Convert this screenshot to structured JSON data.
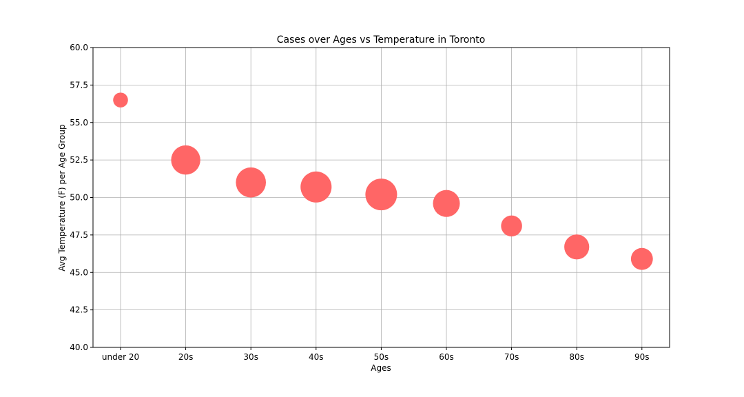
{
  "chart_data": {
    "type": "scatter",
    "title": "Cases over Ages vs Temperature in Toronto",
    "xlabel": "Ages",
    "ylabel": "Avg Temperature (F) per Age Group",
    "categories": [
      "under 20",
      "20s",
      "30s",
      "40s",
      "50s",
      "60s",
      "70s",
      "80s",
      "90s"
    ],
    "series": [
      {
        "values": [
          56.5,
          52.5,
          51.0,
          50.7,
          50.2,
          49.6,
          48.1,
          46.7,
          45.9
        ],
        "relative_size": [
          0.22,
          0.85,
          0.9,
          0.96,
          1.0,
          0.72,
          0.44,
          0.62,
          0.48
        ]
      }
    ],
    "ylim": [
      40,
      60
    ],
    "yticks": [
      "40.0",
      "42.5",
      "45.0",
      "47.5",
      "50.0",
      "52.5",
      "55.0",
      "57.5",
      "60.0"
    ],
    "grid": true,
    "legend": "none",
    "colors": {
      "marker": "#ff6666",
      "grid": "#b0b0b0",
      "axes": "#000000"
    }
  }
}
